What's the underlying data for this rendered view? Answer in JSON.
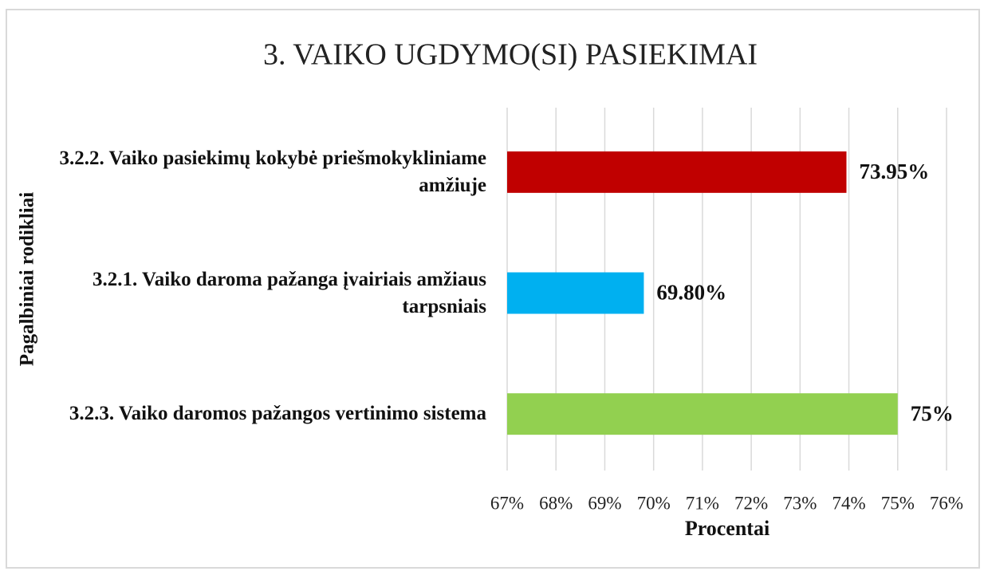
{
  "chart_data": {
    "type": "hbar",
    "title": "3. VAIKO UGDYMO(SI) PASIEKIMAI",
    "categories": [
      "3.2.2. Vaiko pasiekimų kokybė priešmokykliniame amžiuje",
      "3.2.1. Vaiko daroma pažanga įvairiais amžiaus tarpsniais",
      "3.2.3. Vaiko daromos pažangos vertinimo sistema"
    ],
    "values": [
      73.95,
      69.8,
      75
    ],
    "value_labels": [
      "73.95%",
      "69.80%",
      "75%"
    ],
    "colors": [
      "#c00000",
      "#00b0f0",
      "#92d050"
    ],
    "xlabel": "Procentai",
    "ylabel": "Pagalbiniai rodikliai",
    "xlim": [
      67,
      76
    ],
    "xticks": [
      {
        "value": 67,
        "label": "67%"
      },
      {
        "value": 68,
        "label": "68%"
      },
      {
        "value": 69,
        "label": "69%"
      },
      {
        "value": 70,
        "label": "70%"
      },
      {
        "value": 71,
        "label": "71%"
      },
      {
        "value": 72,
        "label": "72%"
      },
      {
        "value": 73,
        "label": "73%"
      },
      {
        "value": 74,
        "label": "74%"
      },
      {
        "value": 75,
        "label": "75%"
      },
      {
        "value": 76,
        "label": "76%"
      }
    ],
    "grid": true
  }
}
